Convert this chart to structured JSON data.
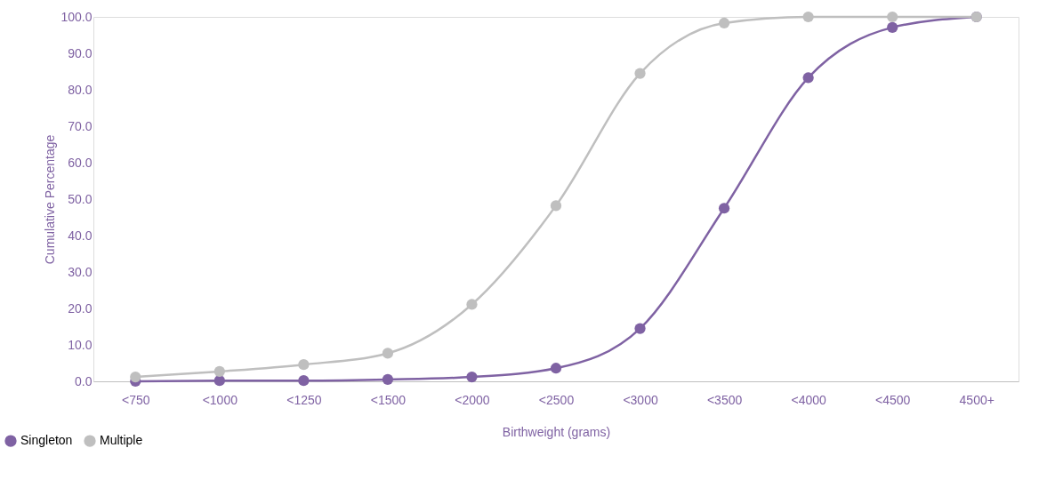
{
  "chart_data": {
    "type": "line",
    "xlabel": "Birthweight (grams)",
    "ylabel": "Cumulative Percentage",
    "categories": [
      "<750",
      "<1000",
      "<1250",
      "<1500",
      "<2000",
      "<2500",
      "<3000",
      "<3500",
      "<4000",
      "<4500",
      "4500+"
    ],
    "series": [
      {
        "name": "Singleton",
        "color": "#7f62a3",
        "values": [
          0.0,
          0.2,
          0.2,
          0.5,
          1.2,
          3.6,
          14.5,
          47.5,
          83.3,
          97.1,
          100.0
        ]
      },
      {
        "name": "Multiple",
        "color": "#bfbfbf",
        "values": [
          1.2,
          2.7,
          4.6,
          7.7,
          21.1,
          48.2,
          84.5,
          98.3,
          100.0,
          100.0,
          100.0
        ]
      }
    ],
    "ylim": [
      0,
      100
    ],
    "yticks": [
      {
        "value": 0,
        "label": "0.0"
      },
      {
        "value": 10,
        "label": "10.0"
      },
      {
        "value": 20,
        "label": "20.0"
      },
      {
        "value": 30,
        "label": "30.0"
      },
      {
        "value": 40,
        "label": "40.0"
      },
      {
        "value": 50,
        "label": "50.0"
      },
      {
        "value": 60,
        "label": "60.0"
      },
      {
        "value": 70,
        "label": "70.0"
      },
      {
        "value": 80,
        "label": "80.0"
      },
      {
        "value": 90,
        "label": "90.0"
      },
      {
        "value": 100,
        "label": "100.0"
      }
    ],
    "grid": false,
    "legend": "bottom left",
    "marker": "circle",
    "line_style": "solid"
  }
}
